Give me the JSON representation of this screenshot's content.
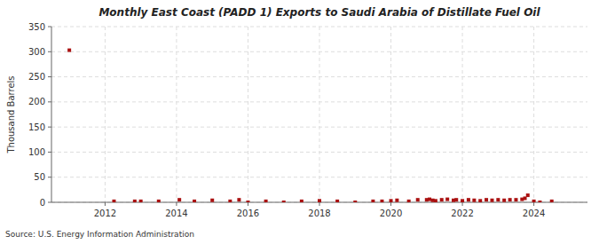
{
  "chart_data": {
    "type": "scatter",
    "title": "Monthly East Coast (PADD 1) Exports to Saudi Arabia of Distillate Fuel Oil",
    "ylabel": "Thousand Barrels",
    "source": "Source: U.S. Energy Information Administration",
    "x": [
      2011.0,
      2012.25,
      2012.83,
      2013.0,
      2013.5,
      2014.08,
      2014.5,
      2015.0,
      2015.5,
      2015.75,
      2016.0,
      2016.5,
      2017.0,
      2017.5,
      2018.0,
      2018.5,
      2019.0,
      2019.5,
      2019.75,
      2020.0,
      2020.17,
      2020.5,
      2020.75,
      2021.0,
      2021.08,
      2021.17,
      2021.25,
      2021.42,
      2021.58,
      2021.75,
      2021.83,
      2022.0,
      2022.17,
      2022.33,
      2022.5,
      2022.67,
      2022.83,
      2023.0,
      2023.17,
      2023.33,
      2023.5,
      2023.67,
      2023.75,
      2023.83,
      2024.0,
      2024.17,
      2024.5
    ],
    "values": [
      303,
      2,
      2,
      2,
      2,
      5,
      2,
      4,
      2,
      5,
      0,
      2,
      0,
      2,
      3,
      2,
      0,
      2,
      2,
      3,
      4,
      2,
      5,
      5,
      6,
      4,
      3,
      5,
      6,
      4,
      5,
      3,
      5,
      4,
      3,
      5,
      4,
      5,
      4,
      5,
      5,
      6,
      8,
      14,
      2,
      0,
      2
    ],
    "color": "#aa1111",
    "marker": "square",
    "xlim": [
      2010.5,
      2025.5
    ],
    "xticks": [
      2012,
      2014,
      2016,
      2018,
      2020,
      2022,
      2024
    ],
    "ylim": [
      0,
      350
    ],
    "yticks": [
      0,
      50,
      100,
      150,
      200,
      250,
      300,
      350
    ],
    "grid": true
  }
}
